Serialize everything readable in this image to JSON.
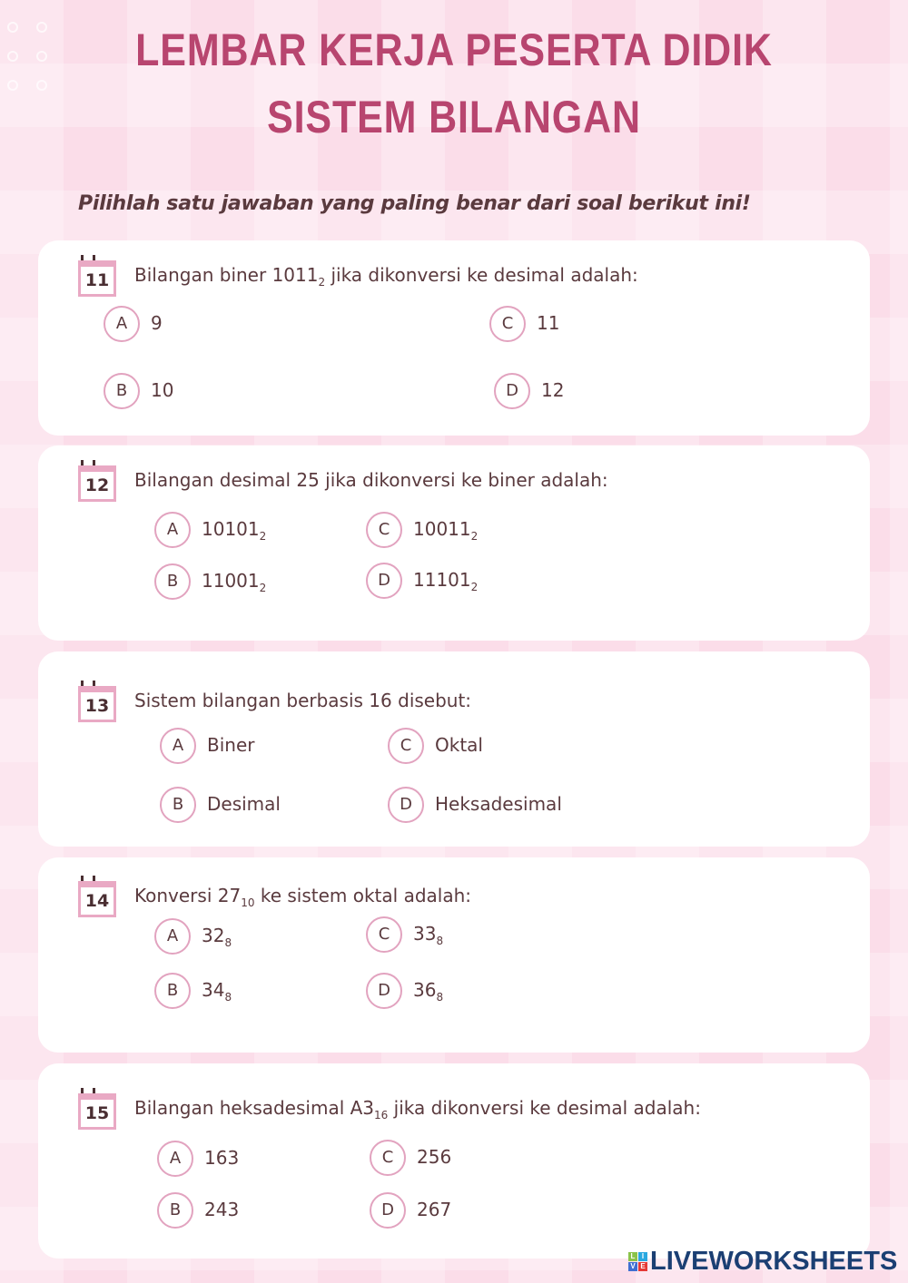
{
  "title": {
    "line1": "LEMBAR KERJA PESERTA DIDIK",
    "line2": "SISTEM BILANGAN"
  },
  "instruction": "Pilihlah satu jawaban yang paling benar dari soal berikut ini!",
  "questions": [
    {
      "number": "11",
      "text": "Bilangan biner 1011",
      "sub": "2",
      "text_after": " jika dikonversi ke desimal adalah:",
      "options": [
        {
          "letter": "A",
          "value": "9",
          "sub": ""
        },
        {
          "letter": "B",
          "value": "10",
          "sub": ""
        },
        {
          "letter": "C",
          "value": "11",
          "sub": ""
        },
        {
          "letter": "D",
          "value": "12",
          "sub": ""
        }
      ]
    },
    {
      "number": "12",
      "text": "Bilangan desimal 25 jika dikonversi ke biner adalah:",
      "sub": "",
      "text_after": "",
      "options": [
        {
          "letter": "A",
          "value": "10101",
          "sub": "2"
        },
        {
          "letter": "B",
          "value": "11001",
          "sub": "2"
        },
        {
          "letter": "C",
          "value": "10011",
          "sub": "2"
        },
        {
          "letter": "D",
          "value": "11101",
          "sub": "2"
        }
      ]
    },
    {
      "number": "13",
      "text": "Sistem bilangan berbasis 16 disebut:",
      "sub": "",
      "text_after": "",
      "options": [
        {
          "letter": "A",
          "value": "Biner",
          "sub": ""
        },
        {
          "letter": "B",
          "value": "Desimal",
          "sub": ""
        },
        {
          "letter": "C",
          "value": "Oktal",
          "sub": ""
        },
        {
          "letter": "D",
          "value": "Heksadesimal",
          "sub": ""
        }
      ]
    },
    {
      "number": "14",
      "text": "Konversi 27",
      "sub": "10",
      "text_after": " ke sistem oktal adalah:",
      "options": [
        {
          "letter": "A",
          "value": "32",
          "sub": "8"
        },
        {
          "letter": "B",
          "value": "34",
          "sub": "8"
        },
        {
          "letter": "C",
          "value": "33",
          "sub": "8"
        },
        {
          "letter": "D",
          "value": "36",
          "sub": "8"
        }
      ]
    },
    {
      "number": "15",
      "text": "Bilangan heksadesimal A3",
      "sub": "16",
      "text_after": "  jika dikonversi ke desimal adalah:",
      "options": [
        {
          "letter": "A",
          "value": "163",
          "sub": ""
        },
        {
          "letter": "B",
          "value": "243",
          "sub": ""
        },
        {
          "letter": "C",
          "value": "256",
          "sub": ""
        },
        {
          "letter": "D",
          "value": "267",
          "sub": ""
        }
      ]
    }
  ],
  "logo": {
    "text": "LIVEWORKSHEETS",
    "mark": [
      "L",
      "I",
      "V",
      "E"
    ]
  },
  "colors": {
    "title": "#b8456f",
    "circle": "#e2a3bf",
    "background": "#fbdde9",
    "logo": "#1b3f73"
  }
}
